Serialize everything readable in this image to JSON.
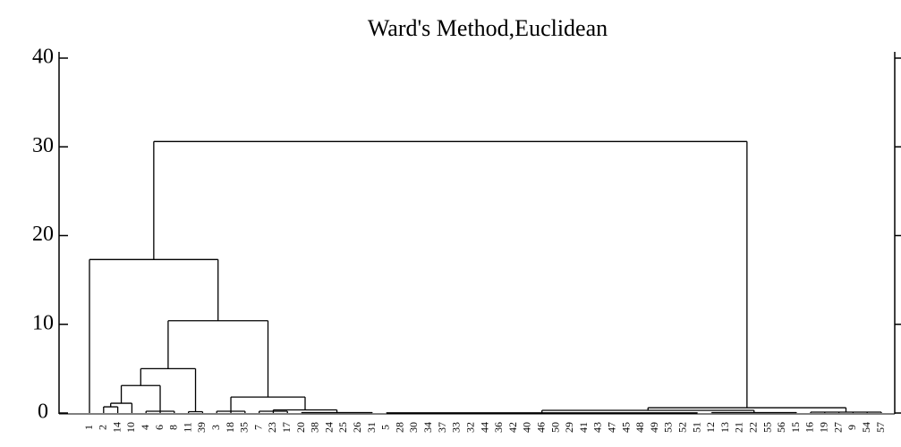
{
  "chart_data": {
    "type": "dendrogram",
    "title": "Ward's Method,Euclidean",
    "ylim": [
      0,
      40
    ],
    "yticks": [
      0,
      10,
      20,
      30,
      40
    ],
    "tree": {
      "height": 30.6,
      "children": [
        {
          "height": 17.3,
          "children": [
            {
              "label": "1"
            },
            {
              "height": 10.4,
              "children": [
                {
                  "height": 5.0,
                  "children": [
                    {
                      "height": 3.1,
                      "children": [
                        {
                          "height": 1.1,
                          "children": [
                            {
                              "height": 0.7,
                              "children": [
                                {
                                  "label": "2"
                                },
                                {
                                  "label": "14"
                                }
                              ]
                            },
                            {
                              "label": "10"
                            }
                          ]
                        },
                        {
                          "height": 0.2,
                          "children": [
                            {
                              "label": "4"
                            },
                            {
                              "label": "6"
                            },
                            {
                              "label": "8"
                            }
                          ]
                        }
                      ]
                    },
                    {
                      "height": 0.15,
                      "children": [
                        {
                          "label": "11"
                        },
                        {
                          "label": "39"
                        }
                      ]
                    }
                  ]
                },
                {
                  "height": 1.8,
                  "children": [
                    {
                      "height": 0.2,
                      "children": [
                        {
                          "label": "3"
                        },
                        {
                          "label": "18"
                        },
                        {
                          "label": "35"
                        }
                      ]
                    },
                    {
                      "height": 0.35,
                      "children": [
                        {
                          "height": 0.2,
                          "children": [
                            {
                              "label": "7"
                            },
                            {
                              "label": "23"
                            },
                            {
                              "label": "17"
                            }
                          ]
                        },
                        {
                          "height": 0.05,
                          "children": [
                            {
                              "label": "20"
                            },
                            {
                              "label": "38"
                            },
                            {
                              "label": "24"
                            },
                            {
                              "label": "25"
                            },
                            {
                              "label": "26"
                            },
                            {
                              "label": "31"
                            }
                          ]
                        }
                      ]
                    }
                  ]
                }
              ]
            }
          ]
        },
        {
          "height": 0.6,
          "children": [
            {
              "height": 0.3,
              "children": [
                {
                  "height": 0.02,
                  "children": [
                    {
                      "label": "5"
                    },
                    {
                      "label": "28"
                    },
                    {
                      "label": "30"
                    },
                    {
                      "label": "34"
                    },
                    {
                      "label": "37"
                    },
                    {
                      "label": "33"
                    },
                    {
                      "label": "32"
                    },
                    {
                      "label": "44"
                    },
                    {
                      "label": "36"
                    },
                    {
                      "label": "42"
                    },
                    {
                      "label": "40"
                    },
                    {
                      "label": "46"
                    },
                    {
                      "label": "50"
                    },
                    {
                      "label": "29"
                    },
                    {
                      "label": "41"
                    },
                    {
                      "label": "43"
                    },
                    {
                      "label": "47"
                    },
                    {
                      "label": "45"
                    },
                    {
                      "label": "48"
                    },
                    {
                      "label": "49"
                    },
                    {
                      "label": "53"
                    },
                    {
                      "label": "52"
                    },
                    {
                      "label": "51"
                    }
                  ]
                },
                {
                  "height": 0.05,
                  "children": [
                    {
                      "label": "12"
                    },
                    {
                      "label": "13"
                    },
                    {
                      "label": "21"
                    },
                    {
                      "label": "22"
                    },
                    {
                      "label": "55"
                    },
                    {
                      "label": "56"
                    },
                    {
                      "label": "15"
                    }
                  ]
                }
              ]
            },
            {
              "height": 0.1,
              "children": [
                {
                  "label": "16"
                },
                {
                  "label": "19"
                },
                {
                  "label": "27"
                },
                {
                  "label": "9"
                },
                {
                  "label": "54"
                },
                {
                  "label": "57"
                }
              ]
            }
          ]
        }
      ]
    }
  }
}
